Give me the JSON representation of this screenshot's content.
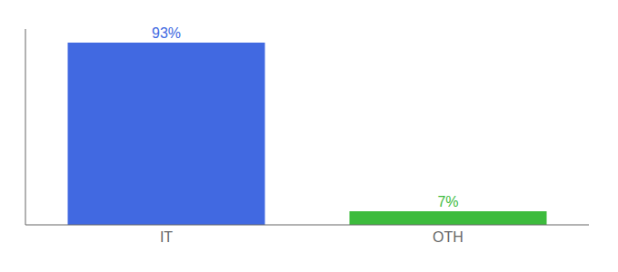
{
  "chart_data": {
    "type": "bar",
    "categories": [
      "IT",
      "OTH"
    ],
    "values": [
      93,
      7
    ],
    "value_labels": [
      "93%",
      "7%"
    ],
    "colors": [
      "#4169e1",
      "#3dbb3d"
    ],
    "ylim": [
      0,
      100
    ],
    "data_labels": true,
    "tick_labels": "x",
    "grid": false
  }
}
